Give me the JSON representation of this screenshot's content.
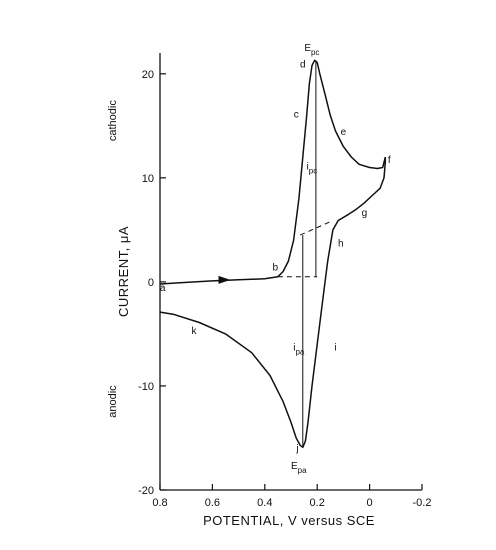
{
  "chart_data": {
    "type": "line",
    "title": "",
    "xlabel": "POTENTIAL, V versus SCE",
    "ylabel_main": "CURRENT, ",
    "ylabel_unit": "μA",
    "ylabel_cathodic": "cathodic",
    "ylabel_anodic": "anodic",
    "xlim": [
      0.8,
      -0.2
    ],
    "ylim": [
      -20,
      22
    ],
    "x_reversed": true,
    "grid": false,
    "x_ticks": [
      {
        "value": 0.8,
        "label": "0.8"
      },
      {
        "value": 0.6,
        "label": "0.6"
      },
      {
        "value": 0.4,
        "label": "0.4"
      },
      {
        "value": 0.2,
        "label": "0.2"
      },
      {
        "value": 0.0,
        "label": "0"
      },
      {
        "value": -0.2,
        "label": "-0.2"
      }
    ],
    "y_ticks": [
      {
        "value": 20,
        "label": "20"
      },
      {
        "value": 10,
        "label": "10"
      },
      {
        "value": 0,
        "label": "0"
      },
      {
        "value": -10,
        "label": "-10"
      },
      {
        "value": -20,
        "label": "-20"
      }
    ],
    "series": [
      {
        "role": "cathodic-scan",
        "points": [
          [
            0.8,
            -0.2
          ],
          [
            0.7,
            -0.05
          ],
          [
            0.6,
            0.1
          ],
          [
            0.5,
            0.2
          ],
          [
            0.4,
            0.3
          ],
          [
            0.35,
            0.5
          ],
          [
            0.33,
            1.0
          ],
          [
            0.31,
            2.0
          ],
          [
            0.29,
            4.0
          ],
          [
            0.27,
            8.0
          ],
          [
            0.255,
            12.0
          ],
          [
            0.24,
            16.0
          ],
          [
            0.23,
            19.0
          ],
          [
            0.22,
            20.8
          ],
          [
            0.21,
            21.3
          ],
          [
            0.2,
            21.1
          ],
          [
            0.19,
            20.0
          ],
          [
            0.17,
            18.0
          ],
          [
            0.15,
            16.0
          ],
          [
            0.13,
            14.5
          ],
          [
            0.1,
            13.0
          ],
          [
            0.07,
            12.0
          ],
          [
            0.04,
            11.3
          ],
          [
            0.0,
            11.0
          ],
          [
            -0.03,
            10.9
          ],
          [
            -0.05,
            11.0
          ],
          [
            -0.06,
            12.0
          ]
        ]
      },
      {
        "role": "anodic-scan",
        "points": [
          [
            -0.06,
            12.0
          ],
          [
            -0.06,
            11.5
          ],
          [
            -0.055,
            10.0
          ],
          [
            -0.04,
            9.0
          ],
          [
            -0.01,
            8.3
          ],
          [
            0.02,
            7.6
          ],
          [
            0.05,
            7.0
          ],
          [
            0.08,
            6.5
          ],
          [
            0.12,
            5.9
          ],
          [
            0.14,
            5.0
          ],
          [
            0.16,
            2.0
          ],
          [
            0.18,
            -2.0
          ],
          [
            0.2,
            -6.0
          ],
          [
            0.22,
            -10.0
          ],
          [
            0.235,
            -13.5
          ],
          [
            0.245,
            -15.3
          ],
          [
            0.255,
            -15.9
          ],
          [
            0.265,
            -15.7
          ],
          [
            0.28,
            -15.0
          ],
          [
            0.3,
            -13.5
          ],
          [
            0.33,
            -11.5
          ],
          [
            0.38,
            -9.0
          ],
          [
            0.45,
            -6.8
          ],
          [
            0.55,
            -5.0
          ],
          [
            0.65,
            -3.9
          ],
          [
            0.75,
            -3.1
          ],
          [
            0.8,
            -2.9
          ]
        ]
      }
    ],
    "baselines": [
      {
        "role": "cathodic-baseline",
        "from": [
          0.35,
          0.5
        ],
        "to": [
          0.2,
          0.5
        ]
      },
      {
        "role": "anodic-baseline",
        "from": [
          0.265,
          4.5
        ],
        "to": [
          0.14,
          5.9
        ]
      }
    ],
    "peak_heights": [
      {
        "role": "ipc",
        "x": 0.205,
        "from": 0.5,
        "to": 21.3
      },
      {
        "role": "ipa",
        "x": 0.255,
        "from": 4.5,
        "to": -15.9
      }
    ],
    "scan_arrow": {
      "x": 0.55,
      "y": 0.2
    },
    "point_labels": [
      {
        "label": "a",
        "x": 0.79,
        "y": -0.5
      },
      {
        "label": "b",
        "x": 0.36,
        "y": 1.5
      },
      {
        "label": "c",
        "x": 0.28,
        "y": 16.2
      },
      {
        "label": "d",
        "x": 0.255,
        "y": 21.0
      },
      {
        "label": "e",
        "x": 0.1,
        "y": 14.5
      },
      {
        "label": "f",
        "x": -0.075,
        "y": 11.8
      },
      {
        "label": "g",
        "x": 0.02,
        "y": 6.7
      },
      {
        "label": "h",
        "x": 0.11,
        "y": 3.8
      },
      {
        "label": "i",
        "x": 0.13,
        "y": -6.2
      },
      {
        "label": "j",
        "x": 0.275,
        "y": -15.9
      },
      {
        "label": "k",
        "x": 0.67,
        "y": -4.6
      }
    ],
    "annotations": [
      {
        "main": "E",
        "sub": "pc",
        "x": 0.205,
        "y": 22.6
      },
      {
        "main": "i",
        "sub": "pc",
        "x": 0.205,
        "y": 11.2
      },
      {
        "main": "i",
        "sub": "pa",
        "x": 0.255,
        "y": -6.2
      },
      {
        "main": "E",
        "sub": "pa",
        "x": 0.255,
        "y": -17.6
      }
    ]
  }
}
